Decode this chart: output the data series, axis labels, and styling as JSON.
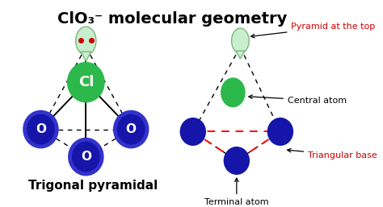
{
  "title": "ClO₃⁻ molecular geometry",
  "bg_color": "#ffffff",
  "left_label": "Trigonal pyramidal",
  "cl_color": "#2db84b",
  "o_color": "#1515aa",
  "o_edge_color": "#3333cc",
  "lone_pair_color": "#c8eed0",
  "lone_pair_dot_color": "#cc0000",
  "right_cl_color": "#2db84b",
  "right_o_color": "#1515aa",
  "right_lone_pair_color": "#c8eed0",
  "annotations": {
    "pyramid_at_top": "Pyramid at the top",
    "central_atom": "Central atom",
    "triangular_base": "Triangular base",
    "terminal_atom": "Terminal atom"
  },
  "ann_color": "#000000",
  "red_ann_color": "#cc0000",
  "title_fontsize": 14,
  "label_fontsize": 11,
  "ann_fontsize": 8
}
